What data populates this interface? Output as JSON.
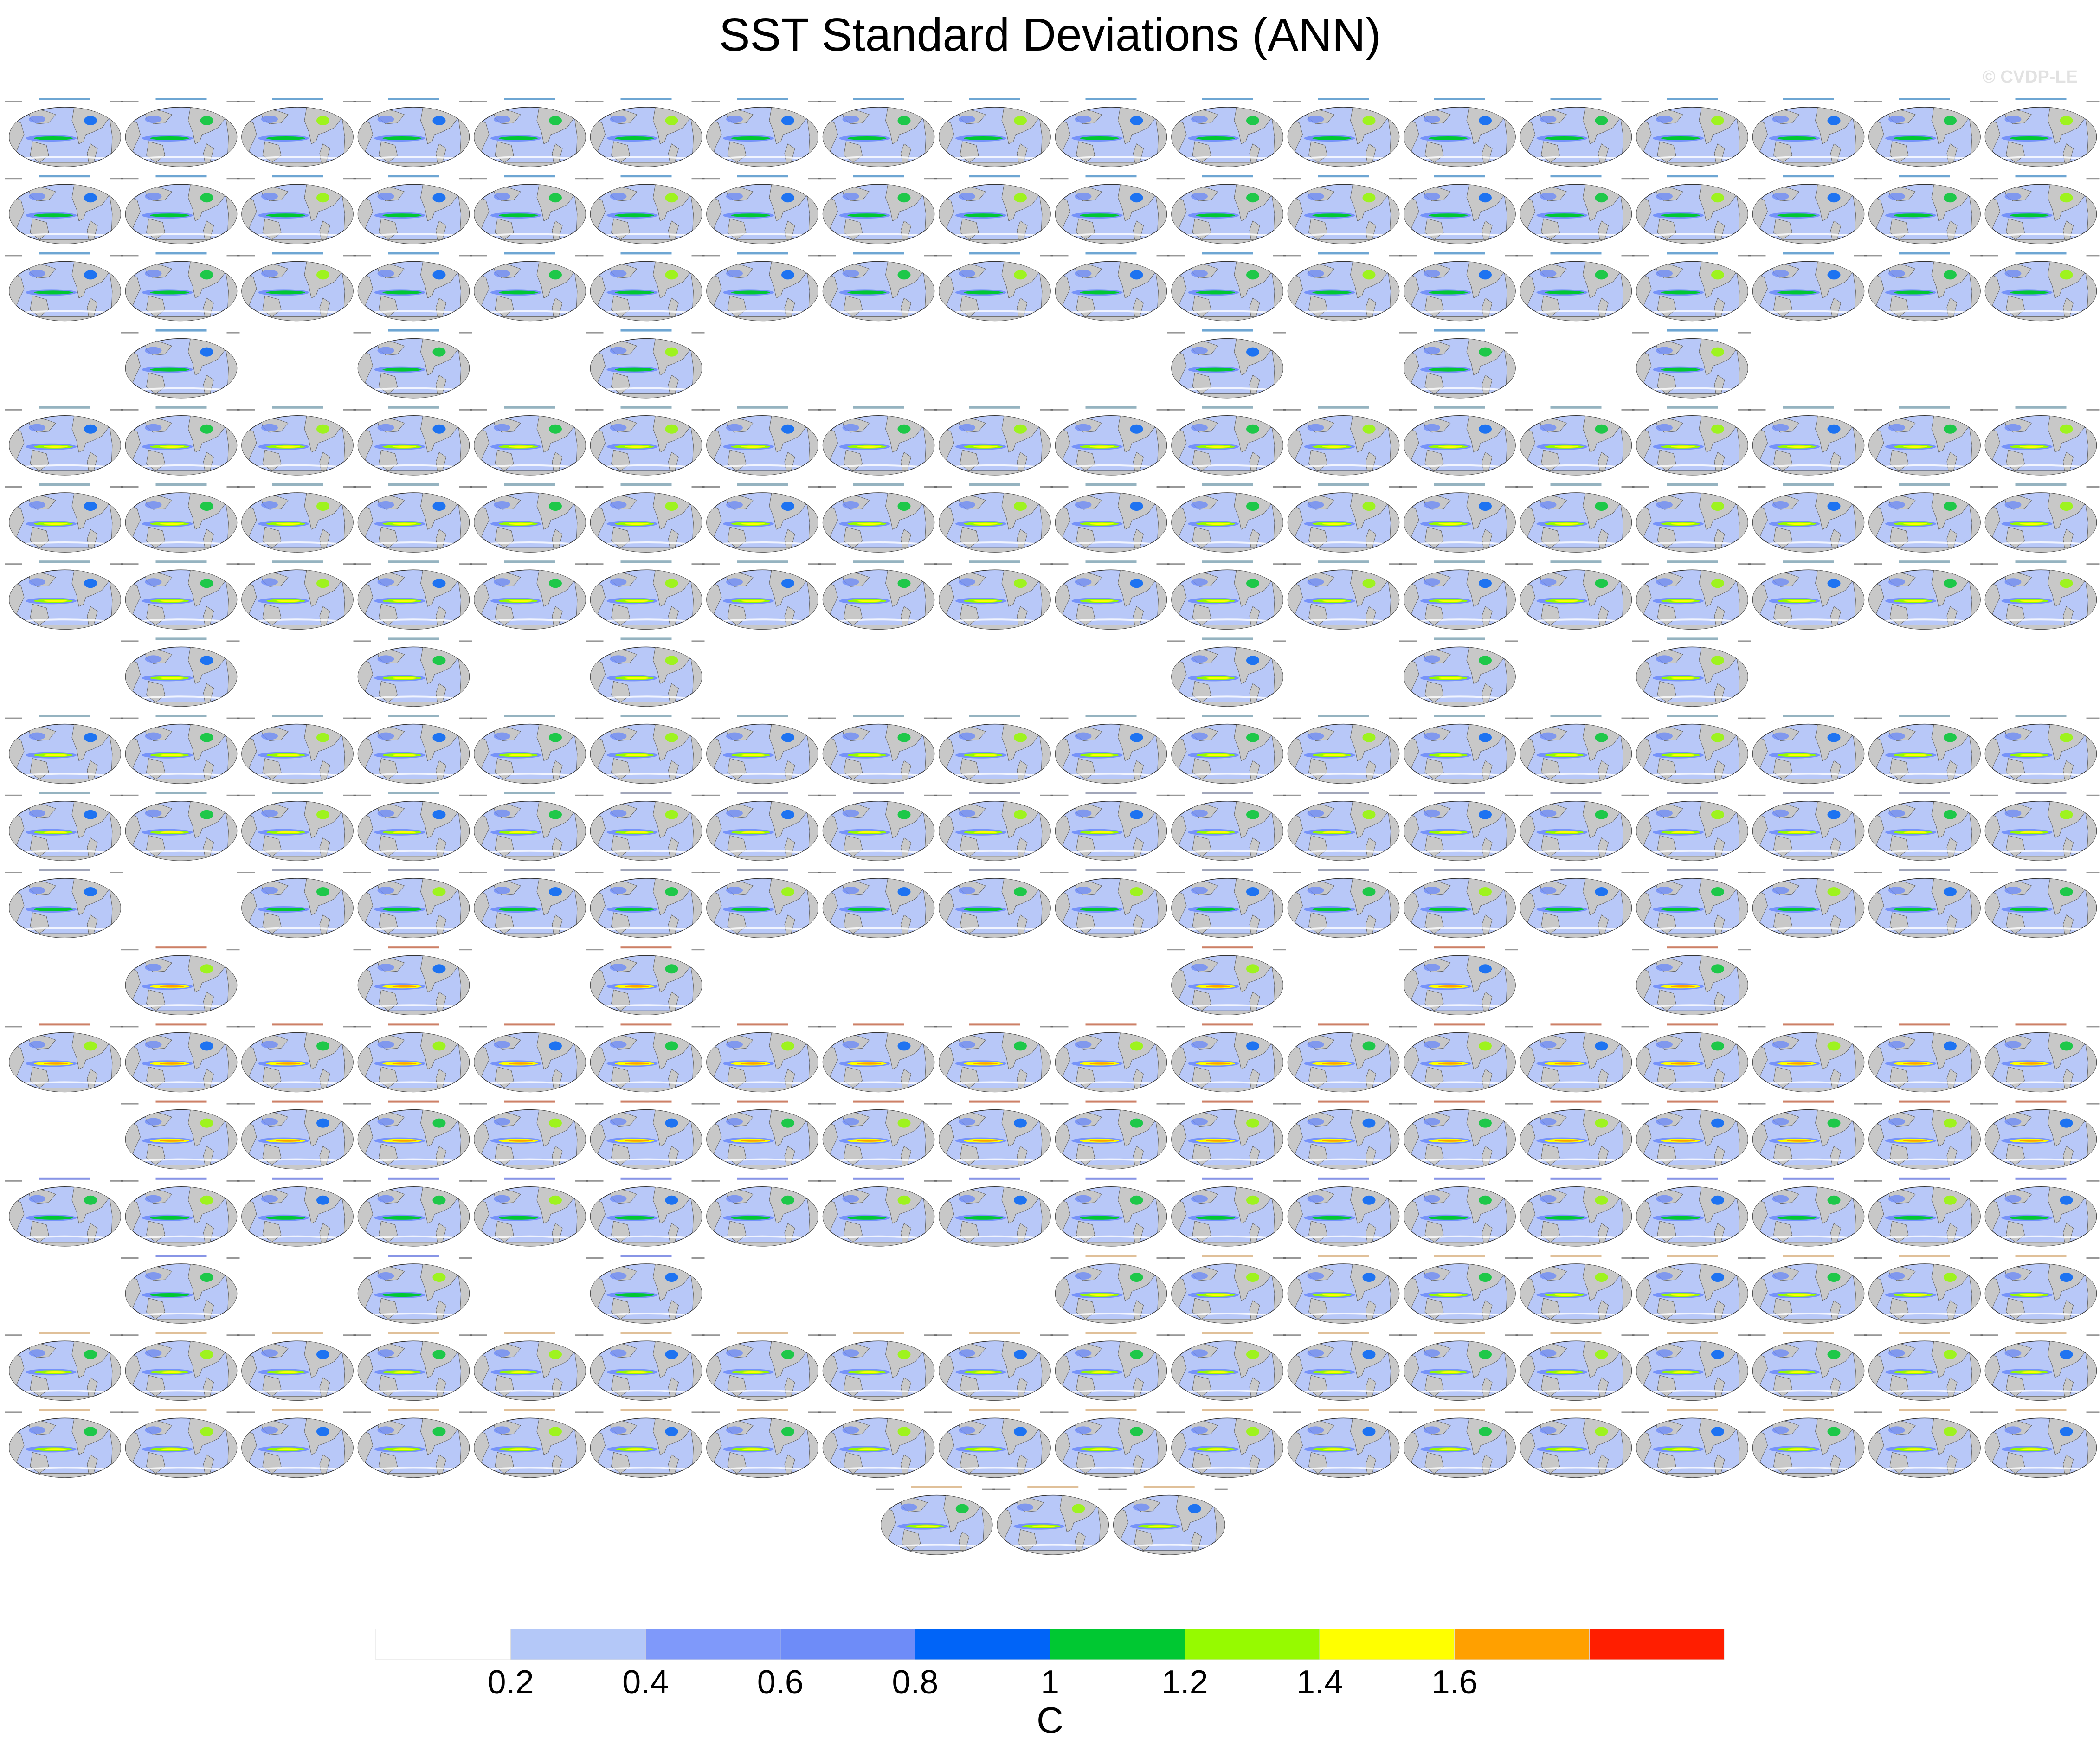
{
  "figure": {
    "title": "SST Standard Deviations (ANN)",
    "watermark": "© CVDP-LE"
  },
  "colors": {
    "ocean_fill": "#b8c8f8",
    "land_fill": "#c8c8c8",
    "ensemble_title_colors": {
      "CanESM5": "#4a90c8",
      "CESM2-LENS": "#7aa0b0",
      "CNRM-CM6-1": "#8a90a8",
      "GISS-E2-1-G": "#c06040",
      "IPSL-CM6A-LR": "#6a7ae0",
      "MIROC6": "#d8b080"
    }
  },
  "chart_data": {
    "type": "heatmap",
    "description_of_panels": "Grid of global map panels of annual SST standard deviation; each panel corresponds to one model ensemble member or observational dataset.",
    "panel_rows": [
      {
        "row": 0,
        "cols": [
          0,
          1,
          2,
          3,
          4,
          5,
          6,
          7,
          8,
          9,
          10,
          11,
          12,
          13,
          14,
          15,
          16,
          17
        ],
        "group": "obs+CanESM5"
      },
      {
        "row": 1,
        "cols": [
          0,
          1,
          2,
          3,
          4,
          5,
          6,
          7,
          8,
          9,
          10,
          11,
          12,
          13,
          14,
          15,
          16,
          17
        ],
        "group": "CanESM5"
      },
      {
        "row": 2,
        "cols": [
          0,
          1,
          2,
          3,
          4,
          5,
          6,
          7,
          8,
          9,
          10,
          11,
          12,
          13,
          14,
          15,
          16,
          17
        ],
        "group": "CanESM5"
      },
      {
        "row": 3,
        "cols": [
          1,
          3,
          5,
          10,
          12,
          14
        ],
        "group": "CanESM5"
      },
      {
        "row": 4,
        "cols": [
          0,
          1,
          2,
          3,
          4,
          5,
          6,
          7,
          8,
          9,
          10,
          11,
          12,
          13,
          14,
          15,
          16,
          17
        ],
        "group": "CESM2-LENS"
      },
      {
        "row": 5,
        "cols": [
          0,
          1,
          2,
          3,
          4,
          5,
          6,
          7,
          8,
          9,
          10,
          11,
          12,
          13,
          14,
          15,
          16,
          17
        ],
        "group": "CESM2-LENS"
      },
      {
        "row": 6,
        "cols": [
          0,
          1,
          2,
          3,
          4,
          5,
          6,
          7,
          8,
          9,
          10,
          11,
          12,
          13,
          14,
          15,
          16,
          17
        ],
        "group": "CESM2-LENS"
      },
      {
        "row": 7,
        "cols": [
          1,
          3,
          5,
          10,
          12,
          14
        ],
        "group": "CESM2-LENS"
      },
      {
        "row": 8,
        "cols": [
          0,
          1,
          2,
          3,
          4,
          5,
          6,
          7,
          8,
          9,
          10,
          11,
          12,
          13,
          14,
          15,
          16,
          17
        ],
        "group": "CESM2-LENS"
      },
      {
        "row": 9,
        "cols": [
          0,
          1,
          2,
          3,
          4,
          5,
          6,
          7,
          8,
          9,
          10,
          11,
          12,
          13,
          14,
          15,
          16,
          17
        ],
        "group": "CESM2-LENS+CNRM-CM6-1"
      },
      {
        "row": 10,
        "cols": [
          0,
          2,
          3,
          4,
          5,
          6,
          7,
          8,
          9,
          10,
          11,
          12,
          13,
          14,
          15,
          16,
          17
        ],
        "group": "CNRM-CM6-1"
      },
      {
        "row": 11,
        "cols": [
          1,
          3,
          5,
          10,
          12,
          14
        ],
        "group": "GISS-E2-1-G"
      },
      {
        "row": 12,
        "cols": [
          0,
          1,
          2,
          3,
          4,
          5,
          6,
          7,
          8,
          9,
          10,
          11,
          12,
          13,
          14,
          15,
          16,
          17
        ],
        "group": "GISS-E2-1-G"
      },
      {
        "row": 13,
        "cols": [
          1,
          2,
          3,
          4,
          5,
          6,
          7,
          8,
          9,
          10,
          11,
          12,
          13,
          14,
          15,
          16,
          17
        ],
        "group": "GISS-E2-1-G+IPSL-CM6A-LR"
      },
      {
        "row": 14,
        "cols": [
          0,
          1,
          2,
          3,
          4,
          5,
          6,
          7,
          8,
          9,
          10,
          11,
          12,
          13,
          14,
          15,
          16,
          17
        ],
        "group": "IPSL-CM6A-LR"
      },
      {
        "row": 15,
        "cols": [
          1,
          3,
          5,
          9,
          10,
          11,
          12,
          13,
          14,
          15,
          16,
          17
        ],
        "group": "IPSL-CM6A-LR+MIROC6"
      },
      {
        "row": 16,
        "cols": [
          0,
          1,
          2,
          3,
          4,
          5,
          6,
          7,
          8,
          9,
          10,
          11,
          12,
          13,
          14,
          15,
          16,
          17
        ],
        "group": "MIROC6"
      },
      {
        "row": 17,
        "cols": [
          0,
          1,
          2,
          3,
          4,
          5,
          6,
          7,
          8,
          9,
          10,
          11,
          12,
          13,
          14,
          15,
          16,
          17
        ],
        "group": "MIROC6"
      },
      {
        "row": 18,
        "cols": [
          7.5,
          8.5,
          9.5
        ],
        "group": "MIROC6"
      }
    ],
    "colorbar": {
      "units": "C",
      "levels": [
        0.2,
        0.4,
        0.6,
        0.8,
        1,
        1.2,
        1.4,
        1.6
      ],
      "tick_labels": [
        "0.2",
        "0.4",
        "0.6",
        "0.8",
        "1",
        "1.2",
        "1.4",
        "1.6"
      ],
      "colors": [
        "#ffffff",
        "#b4c8f8",
        "#7f99fa",
        "#6e8cf8",
        "#0064f8",
        "#00c832",
        "#96fa00",
        "#ffff00",
        "#ffa000",
        "#ff1e00"
      ]
    }
  }
}
